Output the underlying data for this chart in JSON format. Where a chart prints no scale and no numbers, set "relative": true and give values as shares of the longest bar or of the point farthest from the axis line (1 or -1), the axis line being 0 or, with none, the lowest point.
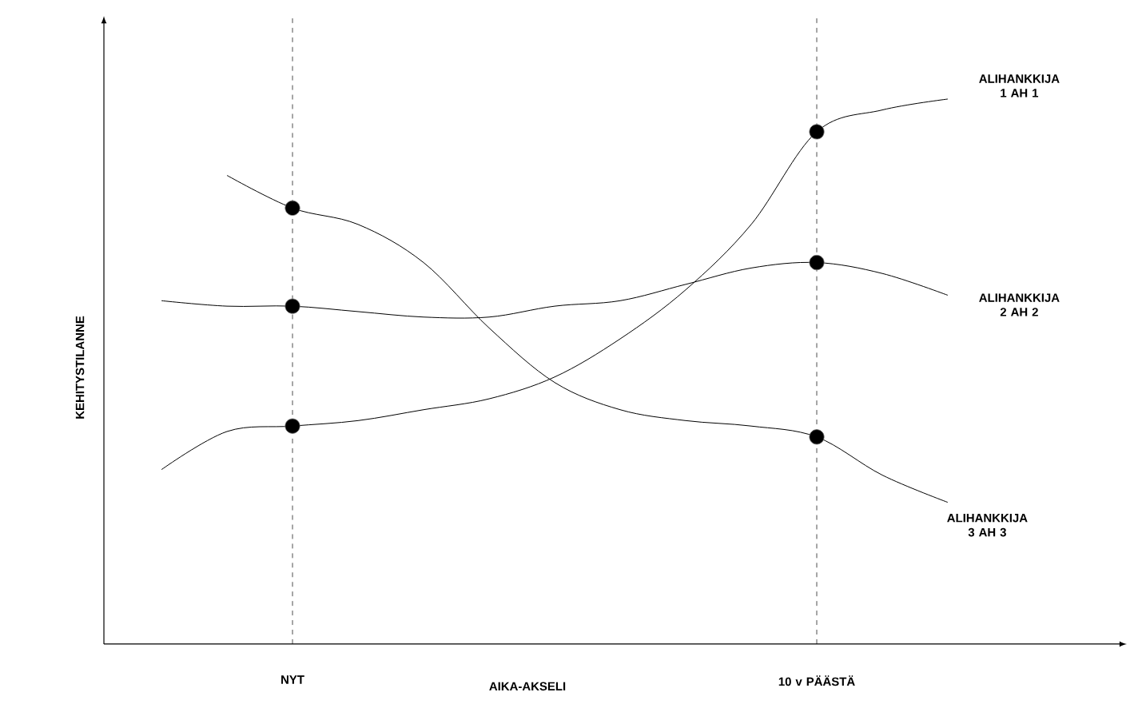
{
  "chart_data": {
    "type": "line",
    "relative": true,
    "xlabel": "AIKA-AKSELI",
    "ylabel": "KEHITYSTILANNE",
    "categories": [
      null,
      null,
      "NYT",
      null,
      null,
      null,
      null,
      null,
      null,
      null,
      "10 v PÄÄSTÄ",
      null,
      null
    ],
    "marker": "none",
    "line_style": "solid",
    "grid": "x",
    "series": [
      {
        "name": "ALIHANKKIJA 1 AH 1",
        "color": "#000000",
        "values": [
          0.32,
          0.39,
          0.4,
          0.41,
          0.43,
          0.45,
          0.49,
          0.56,
          0.65,
          0.77,
          0.94,
          0.98,
          1.0
        ]
      },
      {
        "name": "ALIHANKKIJA 2 AH 2",
        "color": "#000000",
        "values": [
          0.63,
          0.62,
          0.62,
          0.61,
          0.6,
          0.6,
          0.62,
          0.63,
          0.66,
          0.69,
          0.7,
          0.68,
          0.64
        ]
      },
      {
        "name": "ALIHANKKIJA 3 AH 3",
        "color": "#000000",
        "values": [
          null,
          0.86,
          0.8,
          0.77,
          0.7,
          0.58,
          0.48,
          0.43,
          0.41,
          0.4,
          0.38,
          0.31,
          0.26
        ]
      },
      {
        "type": "scatter",
        "marker": "circle",
        "color": "#000000",
        "values": [
          null,
          null,
          0.4,
          null,
          null,
          null,
          null,
          null,
          null,
          null,
          0.94,
          null,
          null
        ]
      },
      {
        "type": "scatter",
        "marker": "circle",
        "color": "#000000",
        "values": [
          null,
          null,
          0.62,
          null,
          null,
          null,
          null,
          null,
          null,
          null,
          0.7,
          null,
          null
        ]
      },
      {
        "type": "scatter",
        "marker": "circle",
        "color": "#000000",
        "values": [
          null,
          null,
          0.8,
          null,
          null,
          null,
          null,
          null,
          null,
          null,
          0.38,
          null,
          null
        ]
      }
    ]
  }
}
